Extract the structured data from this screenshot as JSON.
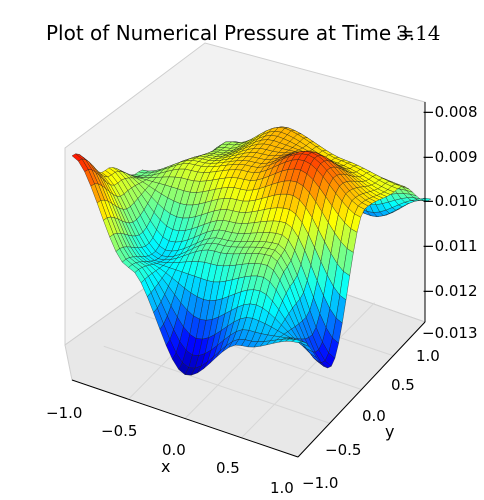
{
  "chart_data": {
    "type": "surface",
    "title": "Plot of Numerical Pressure at Time = ",
    "title_value": "3.14",
    "xlabel": "x",
    "ylabel": "y",
    "zlabel": "",
    "xlim": [
      -1.0,
      1.0
    ],
    "ylim": [
      -1.0,
      1.0
    ],
    "zlim": [
      -0.013,
      -0.008
    ],
    "x_ticks": [
      "−1.0",
      "−0.5",
      "0.0",
      "0.5",
      "1.0"
    ],
    "y_ticks": [
      "−1.0",
      "−0.5",
      "0.0",
      "0.5",
      "1.0"
    ],
    "z_ticks": [
      "−0.008",
      "−0.009",
      "−0.010",
      "−0.011",
      "−0.012",
      "−0.013"
    ],
    "colormap": "jet",
    "grid": true,
    "surface": {
      "x": [
        -1.0,
        -0.5,
        0.0,
        0.5,
        1.0
      ],
      "y": [
        -1.0,
        -0.5,
        0.0,
        0.5,
        1.0
      ],
      "z": [
        [
          -0.0087,
          -0.0098,
          -0.0106,
          -0.0118,
          -0.0124
        ],
        [
          -0.0108,
          -0.0113,
          -0.01,
          -0.0103,
          -0.0112
        ],
        [
          -0.0128,
          -0.0106,
          -0.0096,
          -0.0095,
          -0.0117
        ],
        [
          -0.0117,
          -0.0103,
          -0.0089,
          -0.0098,
          -0.0118
        ],
        [
          -0.0112,
          -0.0125,
          -0.0097,
          -0.01,
          -0.011
        ]
      ]
    }
  }
}
